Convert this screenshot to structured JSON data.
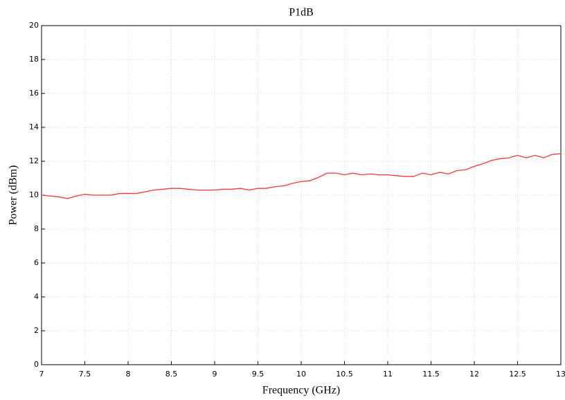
{
  "chart_data": {
    "type": "line",
    "title": "P1dB",
    "x_label": "Frequency (GHz)",
    "y_label": "Power (dBm)",
    "x": [
      7.0,
      7.1,
      7.2,
      7.3,
      7.4,
      7.5,
      7.6,
      7.7,
      7.8,
      7.9,
      8.0,
      8.1,
      8.2,
      8.3,
      8.4,
      8.5,
      8.6,
      8.7,
      8.8,
      8.9,
      9.0,
      9.1,
      9.2,
      9.3,
      9.4,
      9.5,
      9.6,
      9.7,
      9.8,
      9.9,
      10.0,
      10.1,
      10.2,
      10.3,
      10.4,
      10.5,
      10.6,
      10.7,
      10.8,
      10.9,
      11.0,
      11.1,
      11.2,
      11.3,
      11.4,
      11.5,
      11.6,
      11.7,
      11.8,
      11.9,
      12.0,
      12.1,
      12.2,
      12.3,
      12.4,
      12.5,
      12.6,
      12.7,
      12.8,
      12.9,
      13.0
    ],
    "series": [
      {
        "name": "P1dB",
        "color": "#ff3333",
        "values": [
          10.0,
          9.95,
          9.9,
          9.8,
          9.95,
          10.05,
          10.0,
          10.0,
          10.0,
          10.1,
          10.1,
          10.1,
          10.2,
          10.3,
          10.35,
          10.4,
          10.4,
          10.35,
          10.3,
          10.3,
          10.3,
          10.35,
          10.35,
          10.4,
          10.3,
          10.4,
          10.4,
          10.5,
          10.55,
          10.7,
          10.8,
          10.85,
          11.05,
          11.3,
          11.3,
          11.2,
          11.3,
          11.2,
          11.25,
          11.2,
          11.2,
          11.15,
          11.1,
          11.1,
          11.3,
          11.2,
          11.35,
          11.25,
          11.45,
          11.5,
          11.7,
          11.85,
          12.05,
          12.15,
          12.2,
          12.35,
          12.2,
          12.35,
          12.2,
          12.4,
          12.45
        ]
      }
    ],
    "xlim": [
      7,
      13
    ],
    "xticks": [
      7,
      7.5,
      8,
      8.5,
      9,
      9.5,
      10,
      10.5,
      11,
      11.5,
      12,
      12.5,
      13
    ],
    "ylim": [
      0,
      20
    ],
    "yticks": [
      0,
      2,
      4,
      6,
      8,
      10,
      12,
      14,
      16,
      18,
      20
    ],
    "grid": true
  }
}
